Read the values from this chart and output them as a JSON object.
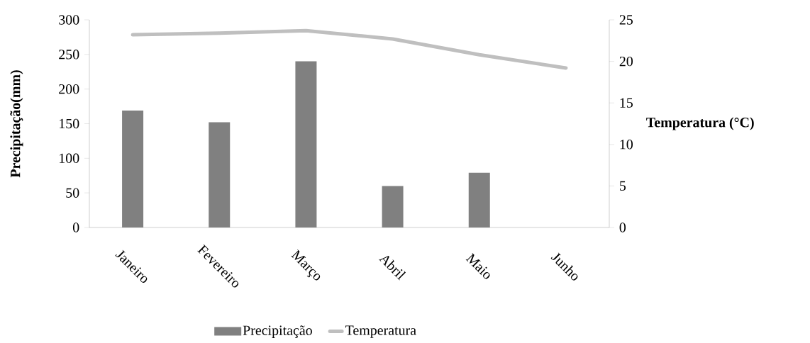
{
  "chart_data": {
    "type": "bar",
    "categories": [
      "Janeiro",
      "Fevereiro",
      "Março",
      "Abril",
      "Maio",
      "Junho"
    ],
    "series": [
      {
        "name": "Precipitação",
        "color": "#808080",
        "values": [
          169,
          152,
          240,
          60,
          79,
          0
        ]
      },
      {
        "name": "Temperatura",
        "type": "line",
        "axis": "y2",
        "color": "#bfbfbf",
        "values": [
          23.2,
          23.4,
          23.7,
          22.7,
          20.8,
          19.2
        ]
      }
    ],
    "ylabel": "Precipitação(mm)",
    "y2label": "Temperatura (°C)",
    "ylim": [
      0,
      300
    ],
    "yticks": [
      0,
      50,
      100,
      150,
      200,
      250,
      300
    ],
    "y2lim": [
      0,
      25
    ],
    "y2ticks": [
      0,
      5,
      10,
      15,
      20,
      25
    ],
    "legend": "bottom"
  }
}
